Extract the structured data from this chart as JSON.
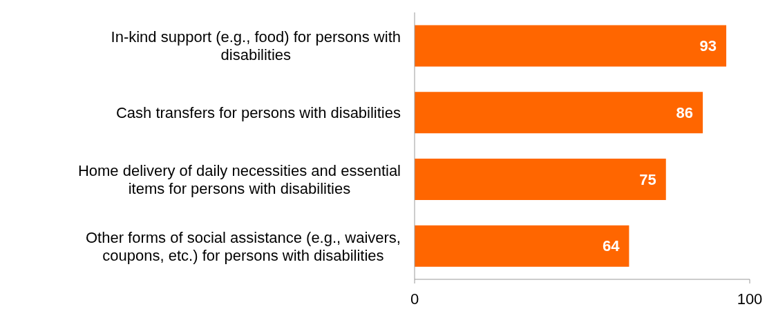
{
  "chart_data": {
    "type": "bar",
    "orientation": "horizontal",
    "categories": [
      "In-kind support (e.g., food) for persons with disabilities",
      "Cash transfers for persons with disabilities",
      "Home delivery of daily necessities and essential items for persons with disabilities",
      "Other forms of social assistance (e.g., waivers, coupons, etc.) for persons with disabilities"
    ],
    "values": [
      93,
      86,
      75,
      64
    ],
    "color": "#ff6600",
    "xlim": [
      0,
      100
    ],
    "xticks": [
      0,
      100
    ],
    "grid": false,
    "data_labels": true
  }
}
